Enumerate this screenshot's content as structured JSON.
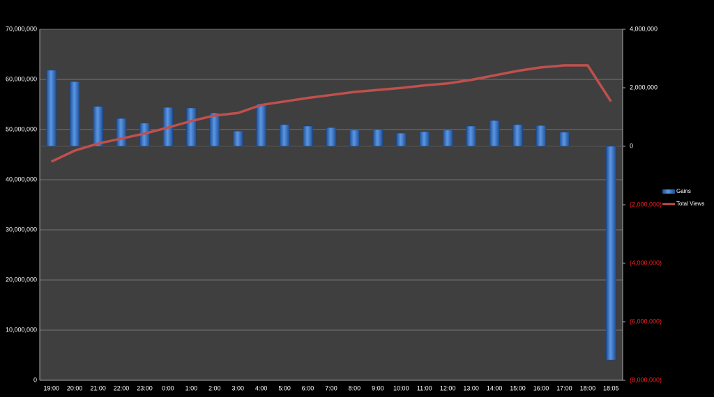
{
  "chart_data": {
    "type": "bar-line",
    "categories": [
      "19:00",
      "20:00",
      "21:00",
      "22:00",
      "23:00",
      "0:00",
      "1:00",
      "2:00",
      "3:00",
      "4:00",
      "5:00",
      "6:00",
      "7:00",
      "8:00",
      "9:00",
      "10:00",
      "11:00",
      "12:00",
      "13:00",
      "14:00",
      "15:00",
      "16:00",
      "17:00",
      "18:00",
      "18:05"
    ],
    "series": [
      {
        "name": "Gains",
        "type": "bar",
        "axis": "y2",
        "color": "#3a78c9",
        "values": [
          2600000,
          2210000,
          1360000,
          950000,
          790000,
          1330000,
          1310000,
          1140000,
          520000,
          1450000,
          740000,
          690000,
          640000,
          550000,
          570000,
          450000,
          500000,
          550000,
          690000,
          880000,
          740000,
          710000,
          480000,
          0,
          -7310000
        ]
      },
      {
        "name": "Total Views",
        "type": "line",
        "axis": "y",
        "color": "#c0504d",
        "values": [
          43600000,
          45800000,
          47200000,
          48200000,
          49200000,
          50400000,
          51700000,
          52800000,
          53300000,
          54900000,
          55600000,
          56300000,
          56900000,
          57500000,
          57900000,
          58300000,
          58800000,
          59200000,
          59900000,
          60800000,
          61700000,
          62400000,
          62800000,
          62800000,
          55600000
        ]
      }
    ],
    "ylim": [
      0,
      70000000
    ],
    "yticks": [
      0,
      {
        "value": 10000000,
        "label": "10,000,000"
      },
      {
        "value": 20000000,
        "label": "20,000,000"
      },
      {
        "value": 30000000,
        "label": "30,000,000"
      },
      {
        "value": 40000000,
        "label": "40,000,000"
      },
      {
        "value": 50000000,
        "label": "50,000,000"
      },
      {
        "value": 60000000,
        "label": "60,000,000"
      },
      {
        "value": 70000000,
        "label": "70,000,000"
      }
    ],
    "y2lim": [
      -8000000,
      4000000
    ],
    "y2ticks": [
      {
        "value": -8000000,
        "label": "(8,000,000)"
      },
      {
        "value": -6000000,
        "label": "(6,000,000)"
      },
      {
        "value": -4000000,
        "label": "(4,000,000)"
      },
      {
        "value": -2000000,
        "label": "(2,000,000)"
      },
      0,
      {
        "value": 2000000,
        "label": "2,000,000"
      },
      {
        "value": 4000000,
        "label": "4,000,000"
      }
    ],
    "negative_tick_color": "#ff2020",
    "grid": true,
    "legend": "right"
  }
}
